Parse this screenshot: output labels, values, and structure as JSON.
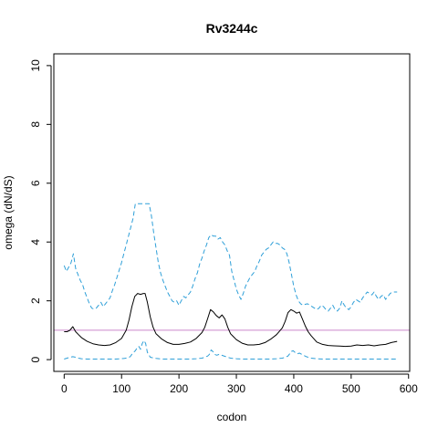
{
  "chart_data": {
    "type": "line",
    "title": "Rv3244c",
    "xlabel": "codon",
    "ylabel": "omega (dN/dS)",
    "xlim": [
      -18,
      602
    ],
    "ylim": [
      -0.4,
      10.4
    ],
    "xticks": [
      "0",
      "100",
      "200",
      "300",
      "400",
      "500",
      "600"
    ],
    "yticks": [
      "0",
      "2",
      "4",
      "6",
      "8",
      "10"
    ],
    "grid": false,
    "legend": "none",
    "reference_line": {
      "y": 1,
      "color": "#cc88cc"
    },
    "series": [
      {
        "role": "mean",
        "color": "#000000",
        "dash": "solid",
        "x": [
          0,
          5,
          10,
          15,
          20,
          25,
          30,
          40,
          50,
          60,
          70,
          80,
          90,
          100,
          108,
          113,
          118,
          123,
          128,
          133,
          138,
          141,
          145,
          150,
          155,
          160,
          170,
          180,
          190,
          200,
          210,
          220,
          230,
          240,
          245,
          250,
          255,
          260,
          265,
          270,
          275,
          280,
          285,
          290,
          300,
          310,
          320,
          330,
          340,
          350,
          360,
          370,
          380,
          385,
          390,
          395,
          400,
          405,
          410,
          415,
          420,
          425,
          430,
          440,
          450,
          460,
          470,
          480,
          490,
          500,
          510,
          520,
          530,
          540,
          550,
          560,
          570,
          575,
          580
        ],
        "y": [
          0.95,
          0.95,
          1.0,
          1.12,
          0.95,
          0.85,
          0.75,
          0.62,
          0.54,
          0.5,
          0.48,
          0.5,
          0.58,
          0.72,
          1.0,
          1.35,
          1.8,
          2.15,
          2.25,
          2.22,
          2.25,
          2.25,
          1.95,
          1.45,
          1.1,
          0.88,
          0.7,
          0.58,
          0.52,
          0.52,
          0.55,
          0.6,
          0.72,
          0.92,
          1.1,
          1.4,
          1.7,
          1.62,
          1.5,
          1.42,
          1.52,
          1.38,
          1.1,
          0.88,
          0.68,
          0.56,
          0.5,
          0.5,
          0.52,
          0.58,
          0.7,
          0.85,
          1.08,
          1.3,
          1.6,
          1.7,
          1.65,
          1.58,
          1.62,
          1.38,
          1.15,
          0.95,
          0.82,
          0.6,
          0.52,
          0.48,
          0.47,
          0.46,
          0.45,
          0.46,
          0.5,
          0.48,
          0.5,
          0.47,
          0.5,
          0.52,
          0.58,
          0.6,
          0.62
        ]
      },
      {
        "role": "upper",
        "color": "#2e9fd8",
        "dash": "dashed",
        "x": [
          0,
          4,
          8,
          12,
          16,
          20,
          24,
          28,
          32,
          36,
          40,
          44,
          48,
          52,
          56,
          60,
          64,
          68,
          72,
          76,
          80,
          84,
          88,
          92,
          96,
          100,
          104,
          108,
          112,
          116,
          120,
          124,
          128,
          132,
          136,
          140,
          144,
          148,
          152,
          156,
          160,
          164,
          168,
          172,
          176,
          180,
          184,
          188,
          192,
          196,
          200,
          204,
          208,
          212,
          216,
          220,
          224,
          228,
          232,
          236,
          240,
          244,
          248,
          252,
          256,
          260,
          264,
          268,
          272,
          276,
          280,
          284,
          288,
          292,
          296,
          300,
          304,
          308,
          312,
          316,
          320,
          324,
          328,
          332,
          336,
          340,
          344,
          348,
          352,
          356,
          360,
          364,
          368,
          372,
          376,
          380,
          384,
          388,
          392,
          396,
          400,
          404,
          408,
          412,
          416,
          420,
          424,
          428,
          432,
          436,
          440,
          444,
          448,
          452,
          456,
          460,
          464,
          468,
          472,
          476,
          480,
          484,
          488,
          492,
          496,
          500,
          504,
          508,
          512,
          516,
          520,
          524,
          528,
          532,
          536,
          540,
          544,
          548,
          552,
          556,
          560,
          564,
          568,
          572,
          576,
          580
        ],
        "y": [
          3.2,
          3.0,
          3.15,
          3.3,
          3.6,
          3.1,
          2.9,
          2.7,
          2.55,
          2.3,
          2.1,
          1.9,
          1.75,
          1.72,
          1.75,
          1.85,
          1.95,
          1.8,
          1.9,
          2.0,
          2.1,
          2.35,
          2.55,
          2.8,
          3.05,
          3.3,
          3.6,
          3.9,
          4.2,
          4.5,
          4.8,
          5.3,
          5.3,
          5.3,
          5.3,
          5.3,
          5.3,
          5.3,
          4.9,
          4.3,
          3.8,
          3.3,
          2.95,
          2.7,
          2.5,
          2.3,
          2.15,
          2.0,
          1.95,
          2.0,
          1.85,
          2.0,
          2.15,
          2.1,
          2.2,
          2.3,
          2.5,
          2.75,
          2.95,
          3.25,
          3.45,
          3.7,
          3.9,
          4.15,
          4.25,
          4.2,
          4.2,
          4.1,
          4.15,
          4.0,
          3.9,
          3.7,
          3.55,
          3.0,
          2.7,
          2.4,
          2.2,
          2.05,
          2.25,
          2.5,
          2.65,
          2.8,
          2.9,
          3.0,
          3.2,
          3.35,
          3.55,
          3.65,
          3.75,
          3.8,
          3.9,
          4.0,
          3.95,
          3.95,
          3.9,
          3.8,
          3.75,
          3.6,
          3.3,
          2.9,
          2.5,
          2.2,
          2.0,
          1.9,
          1.85,
          1.88,
          1.9,
          1.85,
          1.8,
          1.75,
          1.7,
          1.75,
          1.85,
          1.8,
          1.7,
          1.65,
          1.75,
          1.85,
          1.7,
          1.65,
          1.75,
          2.0,
          1.85,
          1.75,
          1.7,
          1.8,
          1.95,
          2.05,
          2.0,
          1.95,
          2.1,
          2.2,
          2.3,
          2.25,
          2.2,
          2.3,
          2.15,
          2.05,
          2.15,
          2.2,
          2.05,
          2.15,
          2.25,
          2.3,
          2.3,
          2.3
        ]
      },
      {
        "role": "lower",
        "color": "#2e9fd8",
        "dash": "dashed",
        "x": [
          0,
          5,
          10,
          15,
          20,
          25,
          30,
          40,
          50,
          60,
          70,
          80,
          90,
          100,
          105,
          110,
          115,
          118,
          121,
          124,
          127,
          130,
          133,
          136,
          139,
          142,
          145,
          150,
          160,
          170,
          180,
          190,
          200,
          210,
          220,
          230,
          240,
          245,
          250,
          253,
          256,
          259,
          262,
          266,
          270,
          276,
          282,
          290,
          300,
          310,
          320,
          330,
          340,
          350,
          360,
          370,
          380,
          385,
          390,
          393,
          396,
          399,
          402,
          406,
          410,
          416,
          422,
          430,
          440,
          450,
          460,
          470,
          480,
          490,
          500,
          510,
          520,
          530,
          540,
          550,
          560,
          570,
          580
        ],
        "y": [
          0.02,
          0.05,
          0.08,
          0.1,
          0.08,
          0.05,
          0.03,
          0.02,
          0.02,
          0.02,
          0.02,
          0.02,
          0.02,
          0.03,
          0.04,
          0.06,
          0.1,
          0.18,
          0.25,
          0.3,
          0.4,
          0.45,
          0.35,
          0.55,
          0.65,
          0.55,
          0.25,
          0.08,
          0.04,
          0.02,
          0.02,
          0.02,
          0.02,
          0.02,
          0.02,
          0.03,
          0.05,
          0.08,
          0.12,
          0.18,
          0.33,
          0.28,
          0.18,
          0.15,
          0.18,
          0.14,
          0.1,
          0.05,
          0.03,
          0.02,
          0.02,
          0.02,
          0.02,
          0.02,
          0.02,
          0.03,
          0.05,
          0.08,
          0.12,
          0.2,
          0.28,
          0.3,
          0.25,
          0.2,
          0.22,
          0.16,
          0.1,
          0.05,
          0.03,
          0.02,
          0.02,
          0.02,
          0.02,
          0.02,
          0.02,
          0.02,
          0.02,
          0.02,
          0.02,
          0.02,
          0.02,
          0.02,
          0.02
        ]
      }
    ]
  }
}
